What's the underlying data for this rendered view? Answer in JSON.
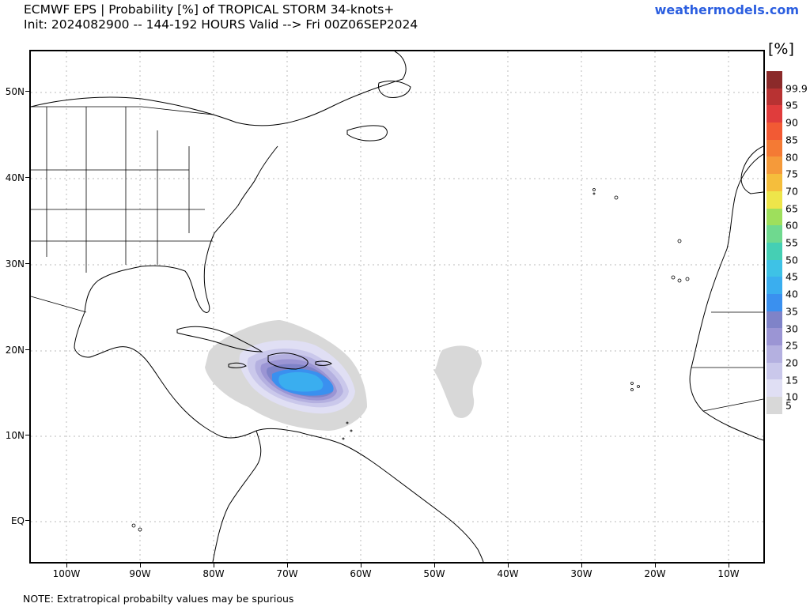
{
  "header": {
    "title_line1": "ECMWF EPS | Probability [%] of TROPICAL STORM 34-knots+",
    "title_line2": "Init: 2024082900 -- 144-192 HOURS Valid --> Fri 00Z06SEP2024",
    "brand": "weathermodels.com"
  },
  "map": {
    "lat_labels": [
      "50N",
      "40N",
      "30N",
      "20N",
      "10N",
      "EQ"
    ],
    "lon_labels": [
      "100W",
      "90W",
      "80W",
      "70W",
      "60W",
      "50W",
      "40W",
      "30W",
      "20W",
      "10W"
    ]
  },
  "colorbar": {
    "units": "[%]",
    "labels": [
      "99.9",
      "95",
      "90",
      "85",
      "80",
      "75",
      "70",
      "65",
      "60",
      "55",
      "50",
      "45",
      "40",
      "35",
      "30",
      "25",
      "20",
      "15",
      "10",
      "5"
    ],
    "colors": [
      "#8b2a2a",
      "#b83232",
      "#e03c3c",
      "#f25a34",
      "#f47a34",
      "#f59a3a",
      "#f5be3c",
      "#eee54a",
      "#9edf5c",
      "#6fd98f",
      "#45cfb4",
      "#3ec2e6",
      "#3aaeef",
      "#3a90ef",
      "#7f83c8",
      "#9b95d4",
      "#b4b0e0",
      "#cac8eb",
      "#e0dff4",
      "#d8d8d8"
    ]
  },
  "footer": {
    "note": "NOTE: Extratropical probabilty values may be spurious"
  }
}
